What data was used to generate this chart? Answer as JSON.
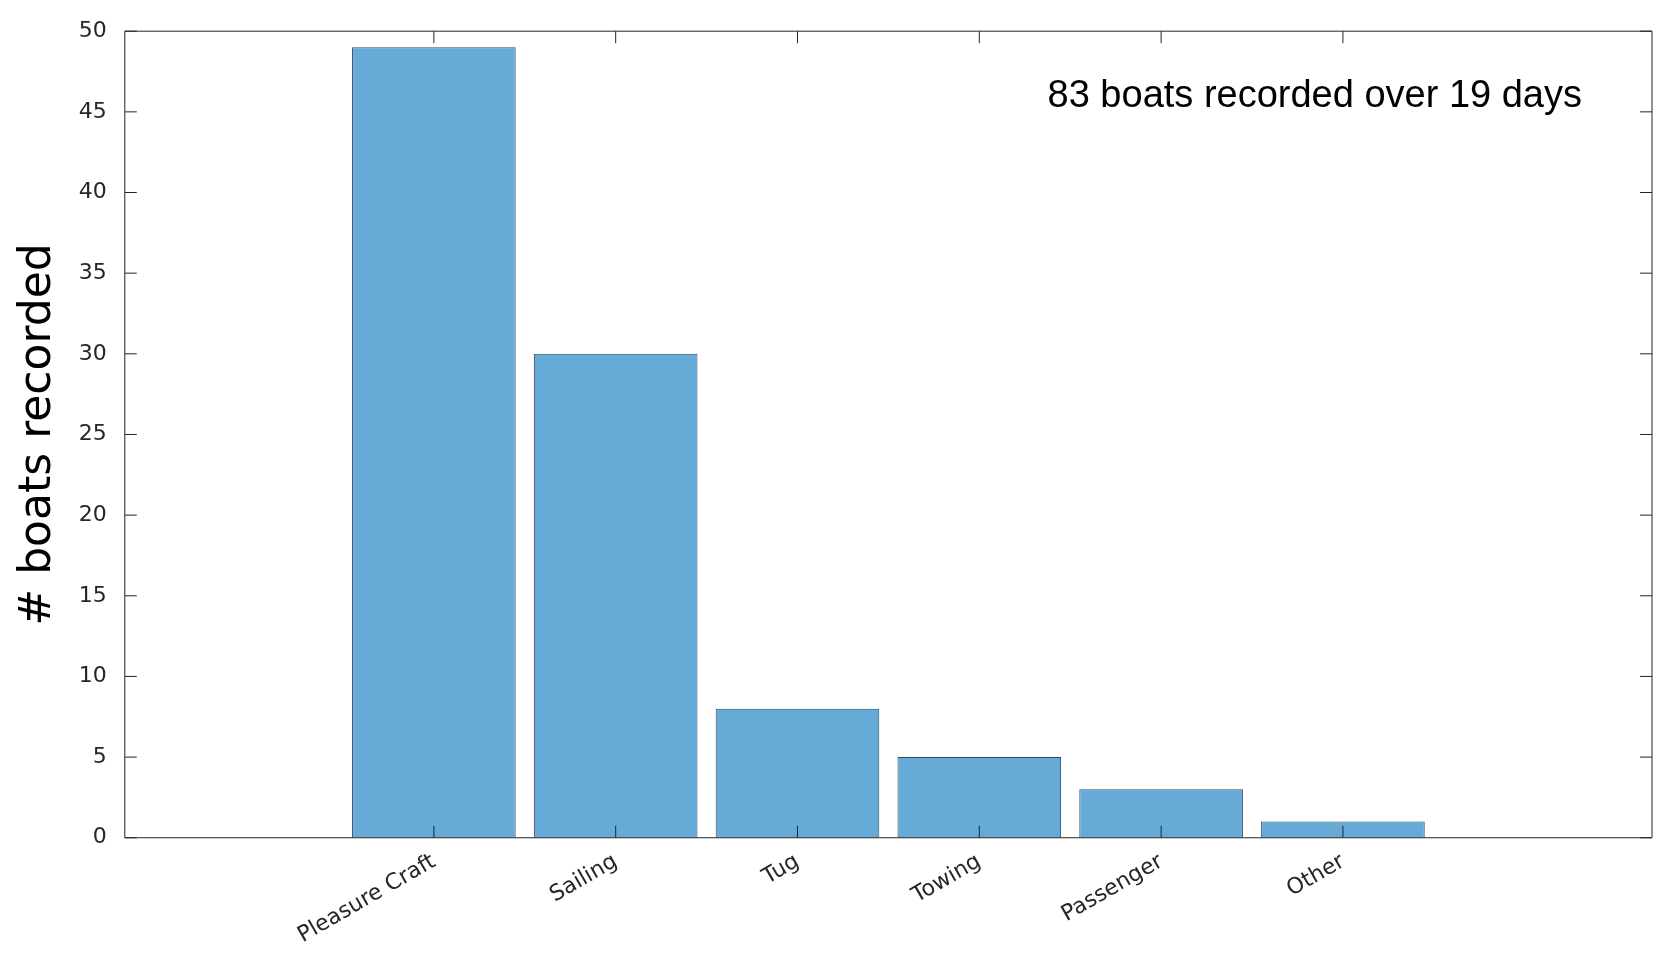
{
  "chart_data": {
    "type": "bar",
    "ylabel": "# boats recorded",
    "categories": [
      "Pleasure Craft",
      "Sailing",
      "Tug",
      "Towing",
      "Passenger",
      "Other"
    ],
    "values": [
      49,
      30,
      8,
      5,
      3,
      1
    ],
    "color": "#66aad7",
    "ylim": [
      0,
      50
    ],
    "yticks": [
      0,
      5,
      10,
      15,
      20,
      25,
      30,
      35,
      40,
      45,
      50
    ],
    "grid": false,
    "legend": false,
    "annotations": [
      "83 boats recorded over 19 days"
    ]
  }
}
